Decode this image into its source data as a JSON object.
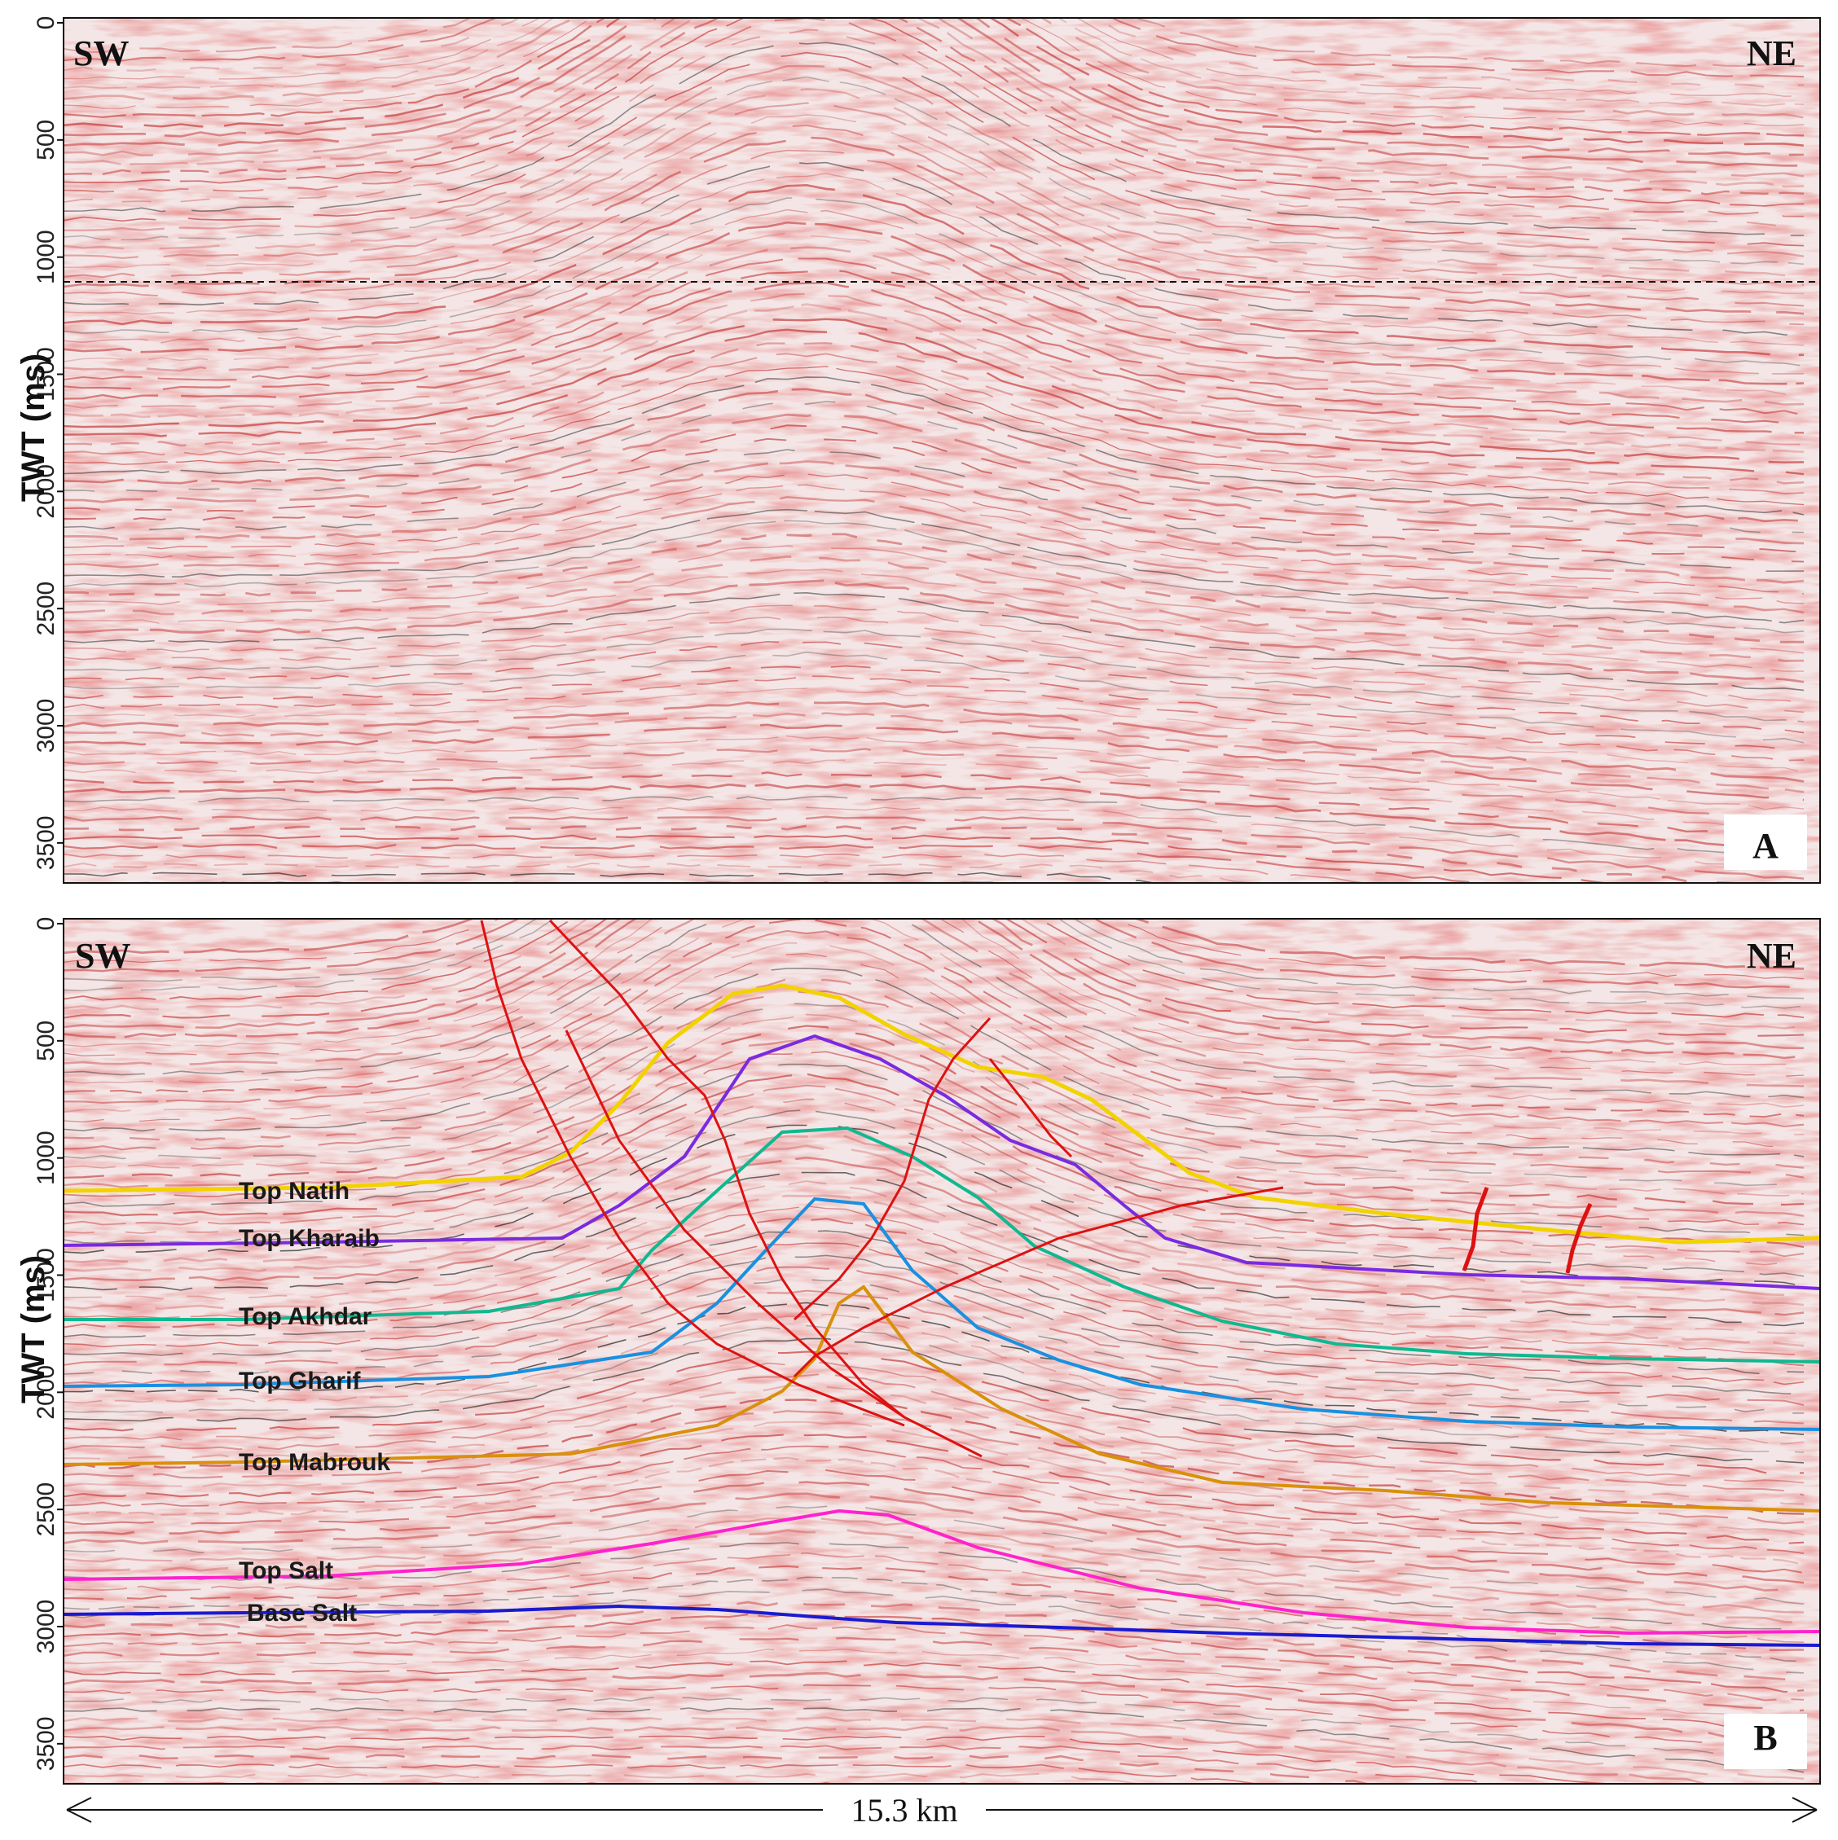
{
  "directions": {
    "left": "SW",
    "right": "NE"
  },
  "axis": {
    "label": "TWT (ms)",
    "ticks": [
      0,
      500,
      1000,
      1500,
      2000,
      2500,
      3000,
      3500
    ],
    "range": [
      0,
      3650
    ]
  },
  "panels": {
    "a_letter": "A",
    "b_letter": "B"
  },
  "scale_bar": {
    "label": "15.3 km"
  },
  "colors": {
    "fault": "#dd1111",
    "reflector_red": "#c63a3a",
    "reflector_dark": "#222222"
  },
  "horizons": [
    {
      "name": "Top Natih",
      "color": "#f2d200",
      "twt_start_ms": 1150
    },
    {
      "name": "Top Kharaib",
      "color": "#7a2ae0",
      "twt_start_ms": 1350
    },
    {
      "name": "Top Akhdar",
      "color": "#10b890",
      "twt_start_ms": 1680
    },
    {
      "name": "Top Gharif",
      "color": "#1a90e0",
      "twt_start_ms": 1950
    },
    {
      "name": "Top Mabrouk",
      "color": "#d9900a",
      "twt_start_ms": 2280
    },
    {
      "name": "Top  Salt",
      "color": "#ff22cc",
      "twt_start_ms": 2780
    },
    {
      "name": "Base Salt",
      "color": "#1a1ad0",
      "twt_start_ms": 2950
    }
  ]
}
